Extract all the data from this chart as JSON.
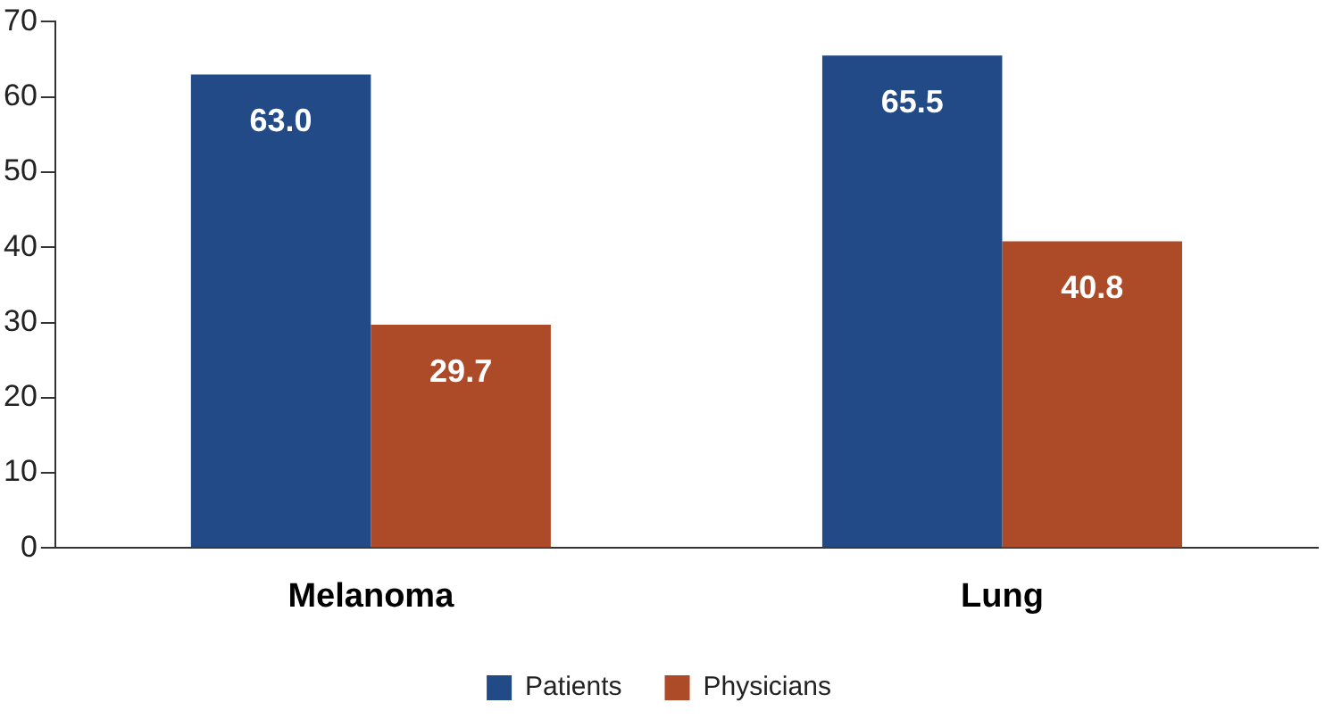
{
  "chart_data": {
    "type": "bar",
    "categories": [
      "Melanoma",
      "Lung"
    ],
    "series": [
      {
        "name": "Patients",
        "color": "#214a87",
        "values": [
          63.0,
          65.5
        ],
        "value_labels": [
          "63.0",
          "65.5"
        ]
      },
      {
        "name": "Physicians",
        "color": "#ad4a28",
        "values": [
          29.7,
          40.8
        ],
        "value_labels": [
          "29.7",
          "40.8"
        ]
      }
    ],
    "ylim": [
      0,
      70
    ],
    "yticks": [
      0,
      10,
      20,
      30,
      40,
      50,
      60,
      70
    ],
    "grid": false,
    "legend": "bottom"
  }
}
